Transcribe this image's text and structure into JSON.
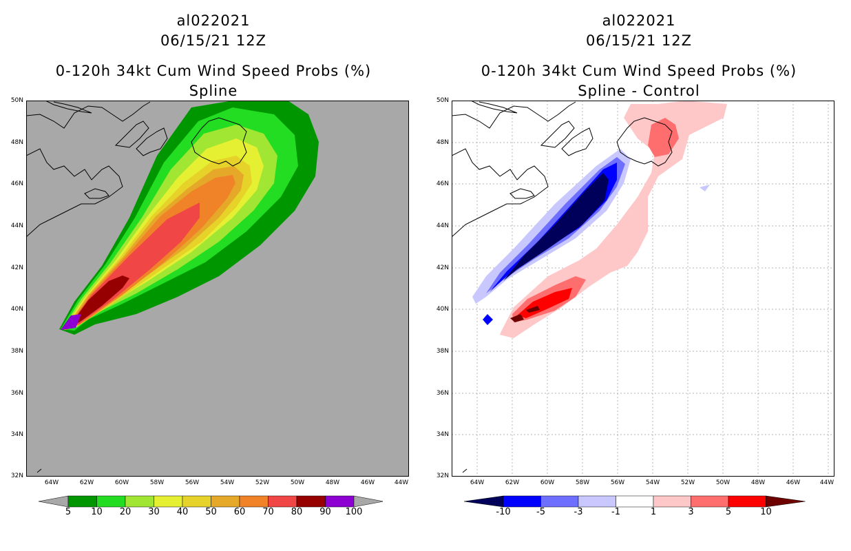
{
  "left": {
    "title_line1": "al022021",
    "title_line2": "06/15/21 12Z",
    "title_line3": "0-120h 34kt Cum Wind Speed Probs (%)",
    "title_line4": "Spline",
    "colorbar": {
      "labels": [
        "5",
        "10",
        "20",
        "30",
        "40",
        "50",
        "60",
        "70",
        "80",
        "90",
        "100"
      ],
      "colors": [
        "#a8a8a8",
        "#009600",
        "#22dd22",
        "#a0e632",
        "#e6f032",
        "#e6d228",
        "#e6a828",
        "#f08228",
        "#f04646",
        "#960000",
        "#8c00d2",
        "#a8a8a8"
      ]
    }
  },
  "right": {
    "title_line1": "al022021",
    "title_line2": "06/15/21 12Z",
    "title_line3": "0-120h 34kt Cum Wind Speed Probs (%)",
    "title_line4": "Spline - Control",
    "colorbar": {
      "labels": [
        "-10",
        "-5",
        "-3",
        "-1",
        "1",
        "3",
        "5",
        "10"
      ],
      "colors": [
        "#00005a",
        "#0000ff",
        "#6e6eff",
        "#c8c8ff",
        "#ffffff",
        "#ffc8c8",
        "#ff6e6e",
        "#ff0000",
        "#6e0000"
      ]
    }
  },
  "axes": {
    "lat_labels": [
      "50N",
      "48N",
      "46N",
      "44N",
      "42N",
      "40N",
      "38N",
      "36N",
      "34N",
      "32N"
    ],
    "lon_labels": [
      "64W",
      "62W",
      "60W",
      "58W",
      "56W",
      "54W",
      "52W",
      "50W",
      "48W",
      "46W",
      "44W"
    ]
  }
}
